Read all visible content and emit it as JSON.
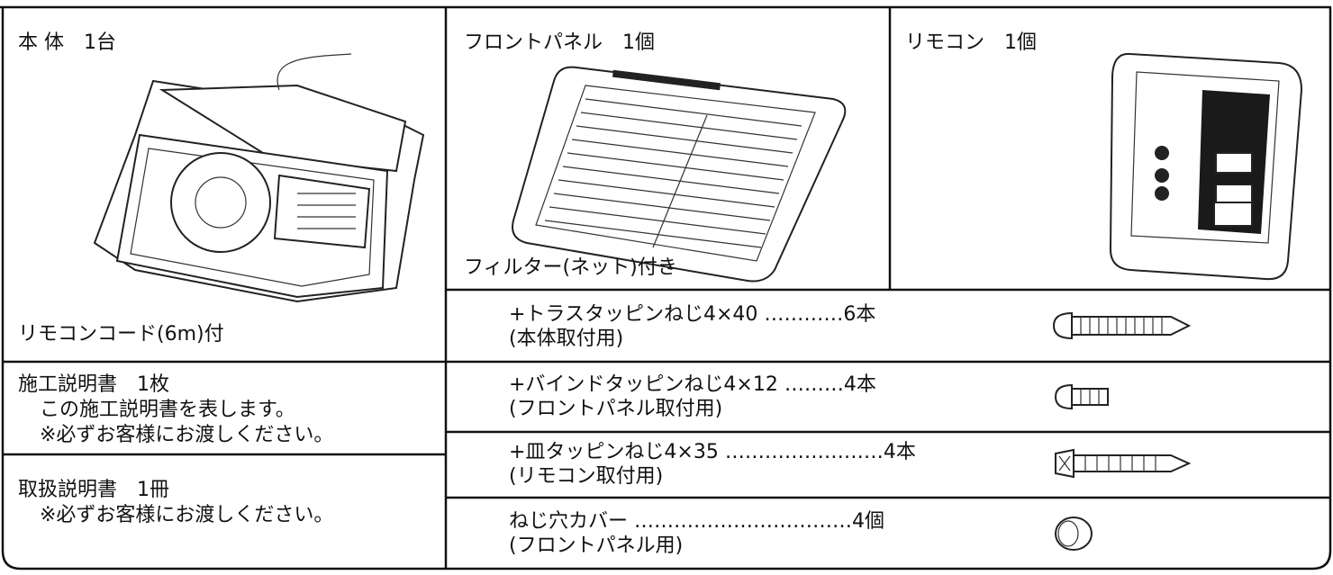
{
  "body_unit": {
    "title": "本 体　1台",
    "note": "リモコンコード(6m)付"
  },
  "front_panel": {
    "title": "フロントパネル　1個",
    "note": "フィルター(ネット)付き"
  },
  "remote": {
    "title": "リモコン　1個"
  },
  "screws": [
    {
      "name": "+トラスタッピンねじ4×40 …………6本",
      "use": "(本体取付用)"
    },
    {
      "name": "+バインドタッピンねじ4×12 ………4本",
      "use": "(フロントパネル取付用)"
    },
    {
      "name": "+皿タッピンねじ4×35 ……………………4本",
      "use": "(リモコン取付用)"
    },
    {
      "name": "ねじ穴カバー ……………………………4個",
      "use": "(フロントパネル用)"
    }
  ],
  "manuals": [
    {
      "title": "施工説明書　1枚",
      "lines": [
        "この施工説明書を表します。",
        "※必ずお客様にお渡しください。"
      ]
    },
    {
      "title": "取扱説明書　1冊",
      "lines": [
        "※必ずお客様にお渡しください。"
      ]
    }
  ]
}
